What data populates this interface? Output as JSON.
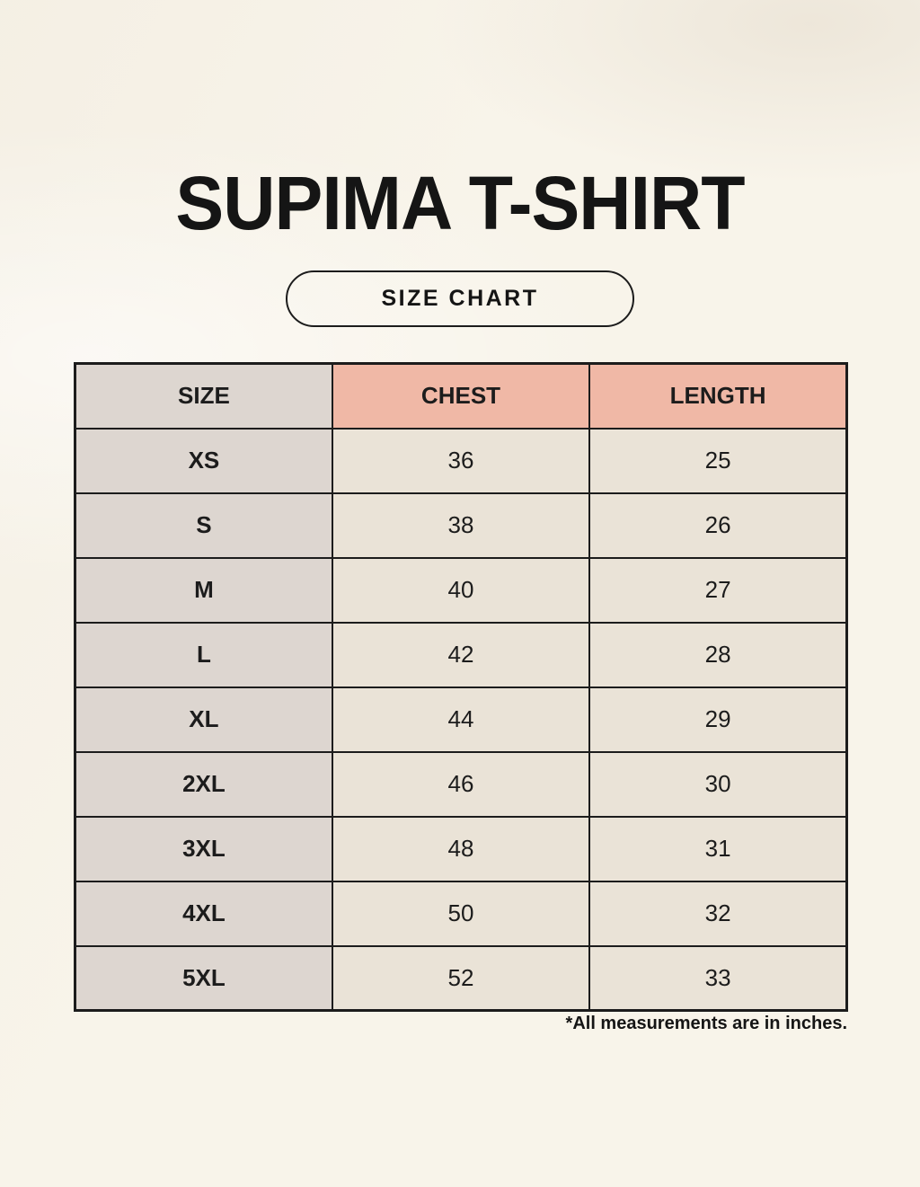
{
  "page": {
    "title": "SUPIMA T-SHIRT",
    "badge_label": "SIZE CHART",
    "footnote": "*All measurements are in inches."
  },
  "chart_data": {
    "type": "table",
    "title": "SUPIMA T-SHIRT",
    "subtitle": "SIZE CHART",
    "units": "inches",
    "columns": [
      "SIZE",
      "CHEST",
      "LENGTH"
    ],
    "rows": [
      [
        "XS",
        "36",
        "25"
      ],
      [
        "S",
        "38",
        "26"
      ],
      [
        "M",
        "40",
        "27"
      ],
      [
        "L",
        "42",
        "28"
      ],
      [
        "XL",
        "44",
        "29"
      ],
      [
        "2XL",
        "46",
        "30"
      ],
      [
        "3XL",
        "48",
        "31"
      ],
      [
        "4XL",
        "50",
        "32"
      ],
      [
        "5XL",
        "52",
        "33"
      ]
    ]
  },
  "colors": {
    "background": "#f8f4ea",
    "size_column_bg": "#ddd6d0",
    "accent_header_bg": "#f0b8a6",
    "value_cell_bg": "#eae3d7",
    "border": "#1c1c1c",
    "text": "#151515"
  }
}
